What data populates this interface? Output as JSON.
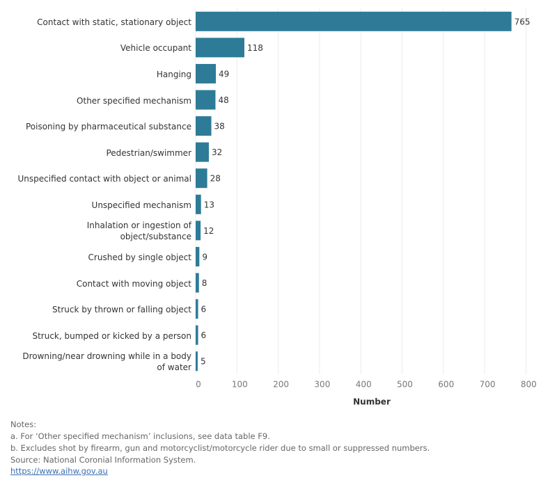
{
  "chart_data": {
    "type": "barh",
    "categories": [
      "Contact with static, stationary object",
      "Vehicle occupant",
      "Hanging",
      "Other specified mechanism",
      "Poisoning by pharmaceutical substance",
      "Pedestrian/swimmer",
      "Unspecified contact with object or animal",
      "Unspecified mechanism",
      "Inhalation or ingestion of object/substance",
      "Crushed by single object",
      "Contact with moving object",
      "Struck by thrown or falling object",
      "Struck, bumped or kicked by a person",
      "Drowning/near drowning while in a body of water"
    ],
    "values": [
      765,
      118,
      49,
      48,
      38,
      32,
      28,
      13,
      12,
      9,
      8,
      6,
      6,
      5
    ],
    "color": "#2e7b97",
    "x_label": "Number",
    "xlim": [
      0,
      850
    ],
    "xticks": [
      0,
      100,
      200,
      300,
      400,
      500,
      600,
      700,
      800
    ],
    "grid": true
  },
  "notes": {
    "heading": "Notes:",
    "lines": [
      "a. For ‘Other specified mechanism’ inclusions, see data table F9.",
      "b. Excludes shot by firearm, gun and motorcyclist/motorcycle rider due to small or suppressed numbers.",
      "Source: National Coronial Information System."
    ],
    "link": "https://www.aihw.gov.au"
  }
}
